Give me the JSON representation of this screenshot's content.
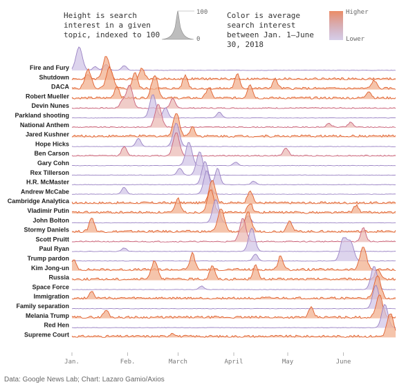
{
  "legend": {
    "height_text": "Height is search interest in a given topic, indexed to 100",
    "height_max": "100",
    "height_min": "0",
    "color_text": "Color is average search interest between Jan. 1–June 30, 2018",
    "color_high": "Higher",
    "color_low": "Lower",
    "color_high_hex": "#e8774a",
    "color_low_hex": "#9a83c4"
  },
  "source": "Data: Google News Lab; Chart: Lazaro Gamio/Axios",
  "chart_data": {
    "type": "area",
    "subtype": "ridgeline",
    "x_ticks": [
      "Jan.",
      "Feb.",
      "March",
      "April",
      "May",
      "June"
    ],
    "x_range": [
      "2018-01-01",
      "2018-06-30"
    ],
    "y_range": [
      0,
      100
    ],
    "series": [
      {
        "name": "Fire and Fury",
        "avg_interest": "low",
        "peaks": [
          {
            "date": "2018-01-05",
            "value": 100
          },
          {
            "date": "2018-01-14",
            "value": 15
          },
          {
            "date": "2018-01-20",
            "value": 25
          },
          {
            "date": "2018-01-30",
            "value": 20
          }
        ]
      },
      {
        "name": "Shutdown",
        "avg_interest": "high",
        "peaks": [
          {
            "date": "2018-01-20",
            "value": 100
          },
          {
            "date": "2018-02-09",
            "value": 45
          },
          {
            "date": "2018-01-10",
            "value": 15
          }
        ]
      },
      {
        "name": "DACA",
        "avg_interest": "high",
        "peaks": [
          {
            "date": "2018-01-10",
            "value": 80
          },
          {
            "date": "2018-01-22",
            "value": 90
          },
          {
            "date": "2018-02-05",
            "value": 70
          },
          {
            "date": "2018-03-05",
            "value": 55
          },
          {
            "date": "2018-04-03",
            "value": 60
          },
          {
            "date": "2018-04-24",
            "value": 40
          },
          {
            "date": "2018-06-18",
            "value": 35
          }
        ]
      },
      {
        "name": "Robert Mueller",
        "avg_interest": "high",
        "peaks": [
          {
            "date": "2018-01-26",
            "value": 50
          },
          {
            "date": "2018-02-16",
            "value": 100
          },
          {
            "date": "2018-03-18",
            "value": 45
          },
          {
            "date": "2018-04-10",
            "value": 60
          },
          {
            "date": "2018-06-15",
            "value": 30
          }
        ]
      },
      {
        "name": "Devin Nunes",
        "avg_interest": "mid",
        "peaks": [
          {
            "date": "2018-02-02",
            "value": 100
          },
          {
            "date": "2018-02-26",
            "value": 40
          },
          {
            "date": "2018-01-29",
            "value": 30
          }
        ]
      },
      {
        "name": "Parkland shooting",
        "avg_interest": "low",
        "peaks": [
          {
            "date": "2018-02-15",
            "value": 100
          },
          {
            "date": "2018-02-22",
            "value": 45
          },
          {
            "date": "2018-03-24",
            "value": 25
          }
        ]
      },
      {
        "name": "National Anthem",
        "avg_interest": "mid",
        "peaks": [
          {
            "date": "2018-05-24",
            "value": 15
          },
          {
            "date": "2018-06-05",
            "value": 20
          },
          {
            "date": "2018-02-18",
            "value": 100
          }
        ]
      },
      {
        "name": "Jared Kushner",
        "avg_interest": "high",
        "peaks": [
          {
            "date": "2018-02-28",
            "value": 100
          },
          {
            "date": "2018-03-09",
            "value": 40
          }
        ]
      },
      {
        "name": "Hope Hicks",
        "avg_interest": "low",
        "peaks": [
          {
            "date": "2018-02-07",
            "value": 35
          },
          {
            "date": "2018-02-28",
            "value": 100
          }
        ]
      },
      {
        "name": "Ben Carson",
        "avg_interest": "mid",
        "peaks": [
          {
            "date": "2018-02-28",
            "value": 100
          },
          {
            "date": "2018-01-30",
            "value": 40
          },
          {
            "date": "2018-04-30",
            "value": 35
          }
        ]
      },
      {
        "name": "Gary Cohn",
        "avg_interest": "low",
        "peaks": [
          {
            "date": "2018-03-07",
            "value": 100
          },
          {
            "date": "2018-04-02",
            "value": 15
          }
        ]
      },
      {
        "name": "Rex Tillerson",
        "avg_interest": "low",
        "peaks": [
          {
            "date": "2018-03-13",
            "value": 100
          },
          {
            "date": "2018-03-02",
            "value": 30
          }
        ]
      },
      {
        "name": "H.R. McMaster",
        "avg_interest": "low",
        "peaks": [
          {
            "date": "2018-03-16",
            "value": 100
          },
          {
            "date": "2018-03-23",
            "value": 70
          },
          {
            "date": "2018-04-12",
            "value": 15
          }
        ]
      },
      {
        "name": "Andrew McCabe",
        "avg_interest": "low",
        "peaks": [
          {
            "date": "2018-03-17",
            "value": 100
          },
          {
            "date": "2018-01-30",
            "value": 30
          }
        ]
      },
      {
        "name": "Cambridge Analytica",
        "avg_interest": "high",
        "peaks": [
          {
            "date": "2018-03-20",
            "value": 100
          },
          {
            "date": "2018-04-10",
            "value": 55
          }
        ]
      },
      {
        "name": "Vladimir Putin",
        "avg_interest": "high",
        "peaks": [
          {
            "date": "2018-03-01",
            "value": 60
          },
          {
            "date": "2018-03-19",
            "value": 100
          },
          {
            "date": "2018-04-10",
            "value": 40
          },
          {
            "date": "2018-06-08",
            "value": 30
          }
        ]
      },
      {
        "name": "John Bolton",
        "avg_interest": "low",
        "peaks": [
          {
            "date": "2018-03-22",
            "value": 100
          },
          {
            "date": "2018-04-09",
            "value": 30
          }
        ]
      },
      {
        "name": "Stormy Daniels",
        "avg_interest": "high",
        "peaks": [
          {
            "date": "2018-01-12",
            "value": 60
          },
          {
            "date": "2018-03-25",
            "value": 100
          },
          {
            "date": "2018-04-09",
            "value": 80
          },
          {
            "date": "2018-05-02",
            "value": 50
          }
        ]
      },
      {
        "name": "Scott Pruitt",
        "avg_interest": "mid",
        "peaks": [
          {
            "date": "2018-04-06",
            "value": 100
          },
          {
            "date": "2018-06-12",
            "value": 60
          }
        ]
      },
      {
        "name": "Paul Ryan",
        "avg_interest": "low",
        "peaks": [
          {
            "date": "2018-04-11",
            "value": 100
          },
          {
            "date": "2018-01-30",
            "value": 15
          }
        ]
      },
      {
        "name": "Trump pardon",
        "avg_interest": "low",
        "peaks": [
          {
            "date": "2018-06-01",
            "value": 100
          },
          {
            "date": "2018-06-05",
            "value": 80
          },
          {
            "date": "2018-04-13",
            "value": 30
          }
        ]
      },
      {
        "name": "Kim Jong-un",
        "avg_interest": "high",
        "peaks": [
          {
            "date": "2018-01-02",
            "value": 40
          },
          {
            "date": "2018-03-09",
            "value": 70
          },
          {
            "date": "2018-04-27",
            "value": 60
          },
          {
            "date": "2018-06-12",
            "value": 100
          }
        ]
      },
      {
        "name": "Russia",
        "avg_interest": "high",
        "peaks": [
          {
            "date": "2018-02-16",
            "value": 80
          },
          {
            "date": "2018-03-20",
            "value": 60
          },
          {
            "date": "2018-04-13",
            "value": 60
          },
          {
            "date": "2018-06-20",
            "value": 40
          }
        ]
      },
      {
        "name": "Space Force",
        "avg_interest": "low",
        "peaks": [
          {
            "date": "2018-06-18",
            "value": 100
          },
          {
            "date": "2018-03-14",
            "value": 15
          }
        ]
      },
      {
        "name": "Immigration",
        "avg_interest": "high",
        "peaks": [
          {
            "date": "2018-01-12",
            "value": 30
          },
          {
            "date": "2018-06-20",
            "value": 100
          }
        ]
      },
      {
        "name": "Family separation",
        "avg_interest": "low",
        "peaks": [
          {
            "date": "2018-06-19",
            "value": 100
          }
        ]
      },
      {
        "name": "Melania Trump",
        "avg_interest": "high",
        "peaks": [
          {
            "date": "2018-01-20",
            "value": 30
          },
          {
            "date": "2018-05-14",
            "value": 40
          },
          {
            "date": "2018-06-21",
            "value": 100
          }
        ]
      },
      {
        "name": "Red Hen",
        "avg_interest": "low",
        "peaks": [
          {
            "date": "2018-06-24",
            "value": 100
          }
        ]
      },
      {
        "name": "Supreme Court",
        "avg_interest": "high",
        "peaks": [
          {
            "date": "2018-06-27",
            "value": 100
          },
          {
            "date": "2018-02-26",
            "value": 15
          }
        ]
      }
    ]
  }
}
